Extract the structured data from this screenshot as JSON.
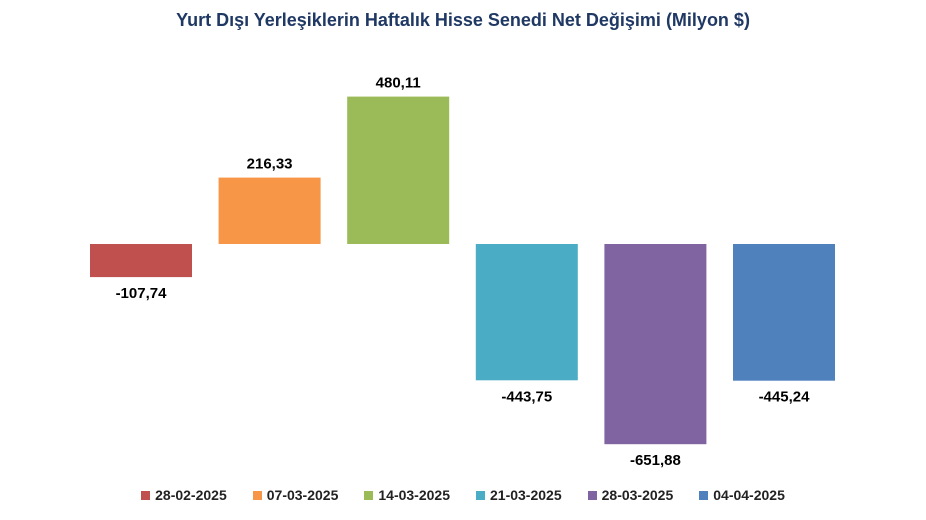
{
  "chart_data": {
    "type": "bar",
    "title": "Yurt Dışı Yerleşiklerin Haftalık Hisse Senedi Net Değişimi (Milyon $)",
    "categories": [
      "28-02-2025",
      "07-03-2025",
      "14-03-2025",
      "21-03-2025",
      "28-03-2025",
      "04-04-2025"
    ],
    "values": [
      -107.74,
      216.33,
      480.11,
      -443.75,
      -651.88,
      -445.24
    ],
    "value_labels": [
      "-107,74",
      "216,33",
      "480,11",
      "-443,75",
      "-651,88",
      "-445,24"
    ],
    "colors": [
      "#c0504d",
      "#f79646",
      "#9bbb59",
      "#4bacc6",
      "#8064a2",
      "#4f81bd"
    ],
    "ylim": [
      -700,
      550
    ],
    "grid": false,
    "legend_placement": "bottom"
  }
}
